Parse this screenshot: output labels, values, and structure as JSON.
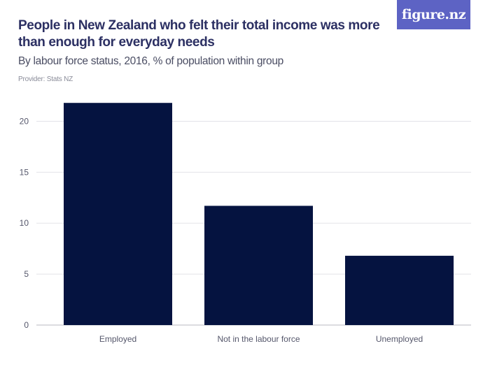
{
  "header": {
    "title": "People in New Zealand who felt their total income was more than enough for everyday needs",
    "subtitle": "By labour force status, 2016, % of population within group",
    "provider": "Provider: Stats NZ",
    "logo_text": "figure.nz"
  },
  "colors": {
    "bar": "#051340",
    "logo_bg": "#5d63c4",
    "title": "#2c3063"
  },
  "chart_data": {
    "type": "bar",
    "title": "People in New Zealand who felt their total income was more than enough for everyday needs",
    "subtitle": "By labour force status, 2016, % of population within group",
    "categories": [
      "Employed",
      "Not in the labour force",
      "Unemployed"
    ],
    "values": [
      21.8,
      11.7,
      6.8
    ],
    "xlabel": "",
    "ylabel": "",
    "ylim": [
      0,
      22.5
    ],
    "yticks": [
      0,
      5,
      10,
      15,
      20
    ],
    "grid": true,
    "legend": "none"
  }
}
